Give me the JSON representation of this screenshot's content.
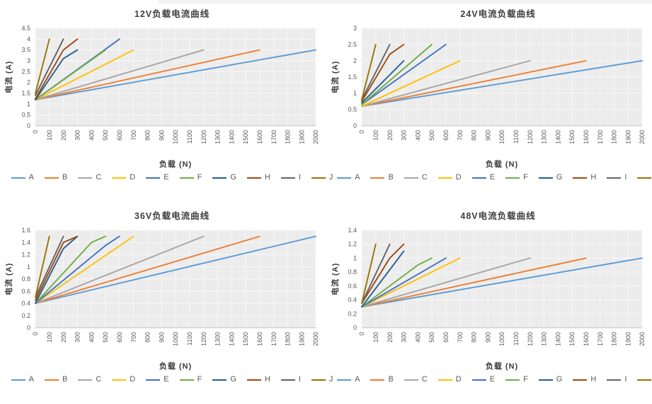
{
  "page": {
    "background": "#ffffff"
  },
  "series_colors": {
    "A": "#5B9BD5",
    "B": "#ED7D31",
    "C": "#A5A5A5",
    "D": "#FFC000",
    "E": "#4472C4",
    "F": "#70AD47",
    "G": "#255E91",
    "H": "#9E480E",
    "I": "#636363",
    "J": "#997300"
  },
  "plot_style": {
    "plot_bg": "#ececec",
    "gridline": "#f7f7f7",
    "axis_line": "#bfbfbf"
  },
  "chart_data": [
    {
      "type": "line",
      "title": "12V负载电流曲线",
      "xlabel": "负载 (N)",
      "ylabel": "电流 (A)",
      "xlim": [
        0,
        2000
      ],
      "ylim": [
        0,
        4.5
      ],
      "grid": true,
      "legend_position": "bottom",
      "x_ticks": [
        0,
        100,
        200,
        300,
        400,
        500,
        600,
        700,
        800,
        900,
        1000,
        1100,
        1200,
        1300,
        1400,
        1500,
        1600,
        1700,
        1800,
        1900,
        2000
      ],
      "y_ticks": [
        0,
        0.5,
        1,
        1.5,
        2,
        2.5,
        3,
        3.5,
        4,
        4.5
      ],
      "series": [
        {
          "name": "A",
          "points": [
            [
              0,
              1.2
            ],
            [
              2000,
              3.5
            ]
          ]
        },
        {
          "name": "B",
          "points": [
            [
              0,
              1.2
            ],
            [
              1600,
              3.5
            ]
          ]
        },
        {
          "name": "C",
          "points": [
            [
              0,
              1.2
            ],
            [
              1200,
              3.5
            ]
          ]
        },
        {
          "name": "D",
          "points": [
            [
              0,
              1.2
            ],
            [
              700,
              3.5
            ]
          ]
        },
        {
          "name": "E",
          "points": [
            [
              0,
              1.2
            ],
            [
              600,
              4
            ]
          ]
        },
        {
          "name": "F",
          "points": [
            [
              0,
              1.2
            ],
            [
              500,
              3.5
            ]
          ]
        },
        {
          "name": "G",
          "points": [
            [
              0,
              1.2
            ],
            [
              200,
              3.1
            ],
            [
              300,
              3.5
            ]
          ]
        },
        {
          "name": "H",
          "points": [
            [
              0,
              1.25
            ],
            [
              200,
              3.5
            ],
            [
              300,
              4
            ]
          ]
        },
        {
          "name": "I",
          "points": [
            [
              0,
              1.4
            ],
            [
              200,
              4
            ]
          ]
        },
        {
          "name": "J",
          "points": [
            [
              0,
              1.5
            ],
            [
              100,
              4
            ]
          ]
        }
      ]
    },
    {
      "type": "line",
      "title": "24V电流负载曲线",
      "xlabel": "负载 (N)",
      "ylabel": "电流 (A)",
      "xlim": [
        0,
        2000
      ],
      "ylim": [
        0,
        3
      ],
      "grid": true,
      "legend_position": "bottom",
      "x_ticks": [
        0,
        100,
        200,
        300,
        400,
        500,
        600,
        700,
        800,
        900,
        1000,
        1100,
        1200,
        1300,
        1400,
        1500,
        1600,
        1700,
        1800,
        1900,
        2000
      ],
      "y_ticks": [
        0,
        0.5,
        1,
        1.5,
        2,
        2.5,
        3
      ],
      "series": [
        {
          "name": "A",
          "points": [
            [
              0,
              0.6
            ],
            [
              2000,
              2
            ]
          ]
        },
        {
          "name": "B",
          "points": [
            [
              0,
              0.6
            ],
            [
              1600,
              2
            ]
          ]
        },
        {
          "name": "C",
          "points": [
            [
              0,
              0.6
            ],
            [
              1200,
              2
            ]
          ]
        },
        {
          "name": "D",
          "points": [
            [
              0,
              0.6
            ],
            [
              700,
              2
            ]
          ]
        },
        {
          "name": "E",
          "points": [
            [
              0,
              0.65
            ],
            [
              600,
              2.5
            ]
          ]
        },
        {
          "name": "F",
          "points": [
            [
              0,
              0.65
            ],
            [
              500,
              2.5
            ]
          ]
        },
        {
          "name": "G",
          "points": [
            [
              0,
              0.7
            ],
            [
              300,
              2
            ]
          ]
        },
        {
          "name": "H",
          "points": [
            [
              0,
              0.75
            ],
            [
              200,
              2.2
            ],
            [
              300,
              2.5
            ]
          ]
        },
        {
          "name": "I",
          "points": [
            [
              0,
              0.8
            ],
            [
              200,
              2.5
            ]
          ]
        },
        {
          "name": "J",
          "points": [
            [
              0,
              0.8
            ],
            [
              100,
              2.5
            ]
          ]
        }
      ]
    },
    {
      "type": "line",
      "title": "36V负载电流曲线",
      "xlabel": "负载 (N)",
      "ylabel": "电流 (A)",
      "xlim": [
        0,
        2000
      ],
      "ylim": [
        0,
        1.6
      ],
      "grid": true,
      "legend_position": "bottom",
      "x_ticks": [
        0,
        100,
        200,
        300,
        400,
        500,
        600,
        700,
        800,
        900,
        1000,
        1100,
        1200,
        1300,
        1400,
        1500,
        1600,
        1700,
        1800,
        1900,
        2000
      ],
      "y_ticks": [
        0,
        0.2,
        0.4,
        0.6,
        0.8,
        1,
        1.2,
        1.4,
        1.6
      ],
      "series": [
        {
          "name": "A",
          "points": [
            [
              0,
              0.4
            ],
            [
              2000,
              1.5
            ]
          ]
        },
        {
          "name": "B",
          "points": [
            [
              0,
              0.4
            ],
            [
              1600,
              1.5
            ]
          ]
        },
        {
          "name": "C",
          "points": [
            [
              0,
              0.4
            ],
            [
              1200,
              1.5
            ]
          ]
        },
        {
          "name": "D",
          "points": [
            [
              0,
              0.4
            ],
            [
              700,
              1.5
            ]
          ]
        },
        {
          "name": "E",
          "points": [
            [
              0,
              0.4
            ],
            [
              500,
              1.35
            ],
            [
              600,
              1.5
            ]
          ]
        },
        {
          "name": "F",
          "points": [
            [
              0,
              0.4
            ],
            [
              400,
              1.4
            ],
            [
              500,
              1.5
            ]
          ]
        },
        {
          "name": "G",
          "points": [
            [
              0,
              0.4
            ],
            [
              200,
              1.3
            ],
            [
              300,
              1.5
            ]
          ]
        },
        {
          "name": "H",
          "points": [
            [
              0,
              0.45
            ],
            [
              200,
              1.4
            ],
            [
              300,
              1.5
            ]
          ]
        },
        {
          "name": "I",
          "points": [
            [
              0,
              0.5
            ],
            [
              200,
              1.5
            ]
          ]
        },
        {
          "name": "J",
          "points": [
            [
              0,
              0.5
            ],
            [
              100,
              1.5
            ]
          ]
        }
      ]
    },
    {
      "type": "line",
      "title": "48V电流负载曲线",
      "xlabel": "负载 (N)",
      "ylabel": "电流 (A)",
      "xlim": [
        0,
        2000
      ],
      "ylim": [
        0,
        1.4
      ],
      "grid": true,
      "legend_position": "bottom",
      "x_ticks": [
        0,
        100,
        200,
        300,
        400,
        500,
        600,
        700,
        800,
        900,
        1000,
        1100,
        1200,
        1300,
        1400,
        1500,
        1600,
        1700,
        1800,
        1900,
        2000
      ],
      "y_ticks": [
        0,
        0.2,
        0.4,
        0.6,
        0.8,
        1,
        1.2,
        1.4
      ],
      "series": [
        {
          "name": "A",
          "points": [
            [
              0,
              0.3
            ],
            [
              2000,
              1
            ]
          ]
        },
        {
          "name": "B",
          "points": [
            [
              0,
              0.3
            ],
            [
              1600,
              1
            ]
          ]
        },
        {
          "name": "C",
          "points": [
            [
              0,
              0.3
            ],
            [
              1200,
              1
            ]
          ]
        },
        {
          "name": "D",
          "points": [
            [
              0,
              0.3
            ],
            [
              700,
              1
            ]
          ]
        },
        {
          "name": "E",
          "points": [
            [
              0,
              0.3
            ],
            [
              600,
              1
            ]
          ]
        },
        {
          "name": "F",
          "points": [
            [
              0,
              0.3
            ],
            [
              400,
              0.9
            ],
            [
              500,
              1
            ]
          ]
        },
        {
          "name": "G",
          "points": [
            [
              0,
              0.3
            ],
            [
              300,
              1.1
            ]
          ]
        },
        {
          "name": "H",
          "points": [
            [
              0,
              0.35
            ],
            [
              200,
              1
            ],
            [
              300,
              1.2
            ]
          ]
        },
        {
          "name": "I",
          "points": [
            [
              0,
              0.35
            ],
            [
              200,
              1.2
            ]
          ]
        },
        {
          "name": "J",
          "points": [
            [
              0,
              0.35
            ],
            [
              100,
              1.2
            ]
          ]
        }
      ]
    }
  ]
}
